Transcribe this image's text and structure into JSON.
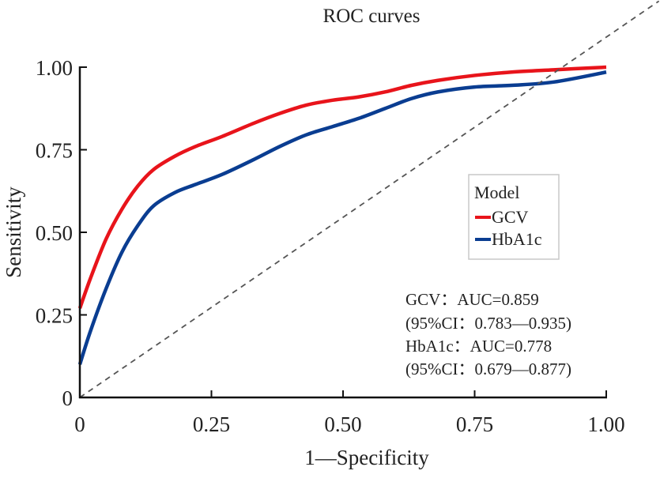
{
  "chart_data": {
    "type": "line",
    "title": "ROC curves",
    "xlabel": "1—Specificity",
    "ylabel": "Sensitivity",
    "xlim": [
      0,
      1
    ],
    "ylim": [
      0,
      1
    ],
    "x_ticks": [
      0,
      0.25,
      0.5,
      0.75,
      1.0
    ],
    "x_tick_labels": [
      "0",
      "0.25",
      "0.50",
      "0.75",
      "1.00"
    ],
    "y_ticks": [
      0,
      0.25,
      0.5,
      0.75,
      1.0
    ],
    "y_tick_labels": [
      "0",
      "0.25",
      "0.50",
      "0.75",
      "1.00"
    ],
    "grid": false,
    "legend": {
      "title": "Model",
      "placement": "right",
      "entries": [
        "GCV",
        "HbA1c"
      ]
    },
    "series": [
      {
        "name": "GCV",
        "color": "#e8141b",
        "x": [
          0,
          0.02,
          0.05,
          0.08,
          0.11,
          0.14,
          0.18,
          0.22,
          0.27,
          0.33,
          0.38,
          0.43,
          0.48,
          0.53,
          0.58,
          0.63,
          0.68,
          0.75,
          0.82,
          0.9,
          1.0
        ],
        "y": [
          0.27,
          0.36,
          0.48,
          0.57,
          0.64,
          0.69,
          0.73,
          0.76,
          0.79,
          0.83,
          0.86,
          0.885,
          0.9,
          0.91,
          0.925,
          0.945,
          0.96,
          0.975,
          0.985,
          0.992,
          1.0
        ]
      },
      {
        "name": "HbA1c",
        "color": "#0a3d91",
        "x": [
          0,
          0.02,
          0.05,
          0.08,
          0.11,
          0.14,
          0.18,
          0.22,
          0.27,
          0.33,
          0.38,
          0.43,
          0.48,
          0.53,
          0.58,
          0.63,
          0.68,
          0.75,
          0.82,
          0.9,
          1.0
        ],
        "y": [
          0.1,
          0.2,
          0.33,
          0.44,
          0.52,
          0.58,
          0.62,
          0.645,
          0.675,
          0.72,
          0.76,
          0.795,
          0.82,
          0.845,
          0.875,
          0.905,
          0.925,
          0.94,
          0.945,
          0.955,
          0.985
        ]
      },
      {
        "name": "Reference",
        "color": "#555555",
        "style": "dashed",
        "x": [
          0,
          1.1
        ],
        "y": [
          0,
          1.2
        ]
      }
    ],
    "annotations": [
      "GCV：AUC=0.859",
      "(95%CI：0.783—0.935)",
      "HbA1c：AUC=0.778",
      "(95%CI：0.679—0.877)"
    ],
    "auc": [
      {
        "name": "GCV",
        "auc": 0.859,
        "ci_low": 0.783,
        "ci_high": 0.935
      },
      {
        "name": "HbA1c",
        "auc": 0.778,
        "ci_low": 0.679,
        "ci_high": 0.877
      }
    ]
  }
}
